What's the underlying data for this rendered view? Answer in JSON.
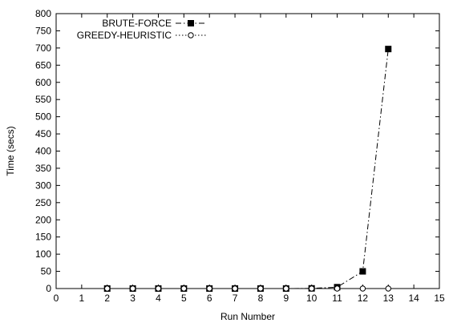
{
  "chart_data": {
    "type": "line",
    "xlabel": "Run Number",
    "ylabel": "Time (secs)",
    "xlim": [
      0,
      15
    ],
    "ylim": [
      0,
      800
    ],
    "xticks": [
      0,
      1,
      2,
      3,
      4,
      5,
      6,
      7,
      8,
      9,
      10,
      11,
      12,
      13,
      14,
      15
    ],
    "yticks": [
      0,
      50,
      100,
      150,
      200,
      250,
      300,
      350,
      400,
      450,
      500,
      550,
      600,
      650,
      700,
      750,
      800
    ],
    "grid": false,
    "legend_position": "top-left",
    "series": [
      {
        "name": "BRUTE-FORCE",
        "marker": "filled-square",
        "line_style": "dash-dot",
        "color": "#000000",
        "x": [
          2,
          3,
          4,
          5,
          6,
          7,
          8,
          9,
          10,
          11,
          12,
          13
        ],
        "y": [
          0,
          0,
          0,
          0,
          0,
          0,
          0,
          0,
          0.5,
          4,
          50,
          697
        ]
      },
      {
        "name": "GREEDY-HEURISTIC",
        "marker": "open-circle",
        "line_style": "dotted",
        "color": "#000000",
        "x": [
          2,
          3,
          4,
          5,
          6,
          7,
          8,
          9,
          10,
          11,
          12,
          13
        ],
        "y": [
          0,
          0,
          0,
          0,
          0,
          0,
          0,
          0,
          0,
          0,
          0,
          0
        ]
      }
    ]
  }
}
